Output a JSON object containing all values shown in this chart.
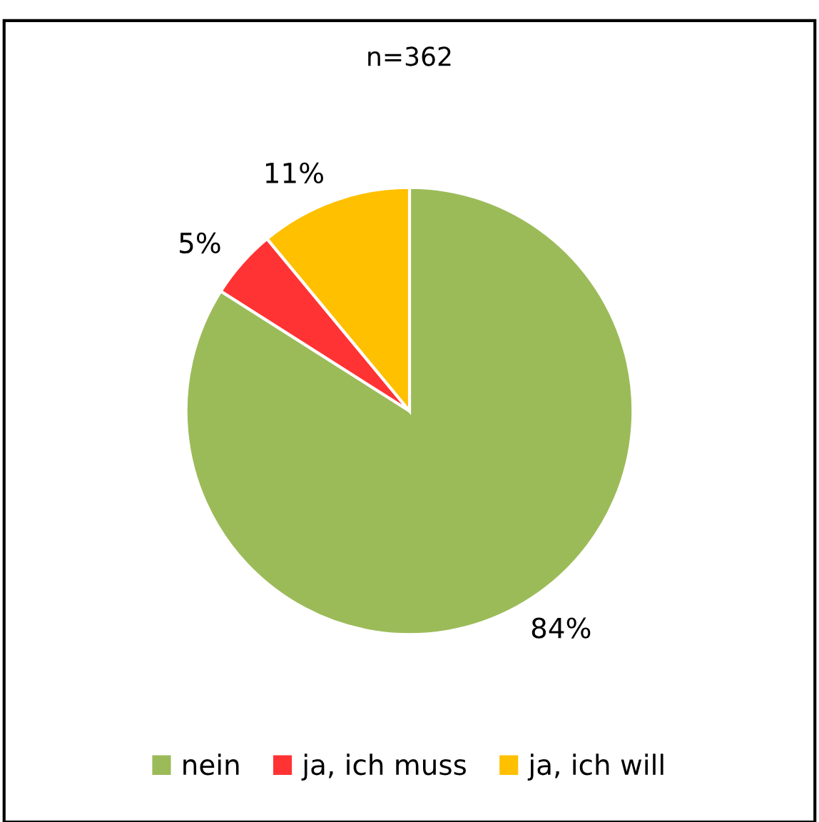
{
  "chart_data": {
    "type": "pie",
    "title": "n=362",
    "categories": [
      "nein",
      "ja, ich muss",
      "ja, ich will"
    ],
    "values": [
      84,
      5,
      11
    ],
    "value_labels": [
      "84%",
      "5%",
      "11%"
    ],
    "colors": [
      "#9bbb59",
      "#ff3333",
      "#ffc000"
    ],
    "legend": "bottom"
  }
}
